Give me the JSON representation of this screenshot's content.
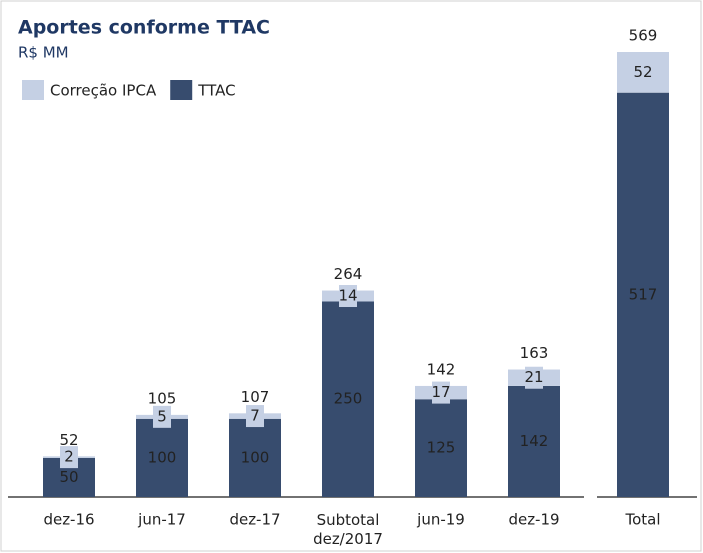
{
  "chart_data": {
    "type": "stacked_bar",
    "title": "Aportes conforme TTAC",
    "subtitle": "R$ MM",
    "categories": [
      "dez-16",
      "jun-17",
      "dez-17",
      "Subtotal\ndez/2017",
      "jun-19",
      "dez-19",
      "Total"
    ],
    "series": [
      {
        "name": "TTAC",
        "color": "#374c6e",
        "values": [
          50,
          100,
          100,
          250,
          125,
          142,
          517
        ]
      },
      {
        "name": "Correção IPCA",
        "color": "#c5d0e4",
        "values": [
          2,
          5,
          7,
          14,
          17,
          21,
          52
        ]
      }
    ],
    "totals": [
      52,
      105,
      107,
      264,
      142,
      163,
      569
    ]
  }
}
